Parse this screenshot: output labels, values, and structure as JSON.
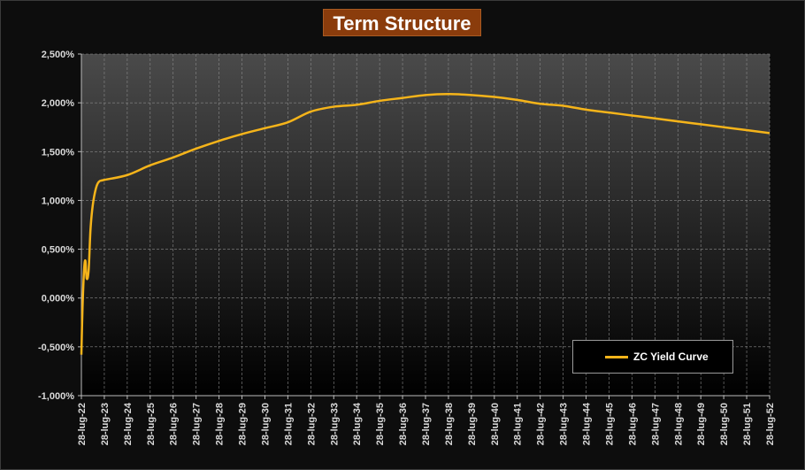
{
  "chart_data": {
    "type": "line",
    "title": "Term Structure",
    "colors": {
      "line": "#f5b41a",
      "title_bg": "#8a3c0c",
      "plot_bg_top": "#4a4a4a",
      "plot_bg_bottom": "#000000",
      "grid": "#8a8a8a",
      "text": "#d9d9d9"
    },
    "ylim": [
      -1.0,
      2.5
    ],
    "yticks": [
      -1.0,
      -0.5,
      0.0,
      0.5,
      1.0,
      1.5,
      2.0,
      2.5
    ],
    "ytick_labels": [
      "-1,000%",
      "-0,500%",
      "0,000%",
      "0,500%",
      "1,000%",
      "1,500%",
      "2,000%",
      "2,500%"
    ],
    "xticks": [
      "28-lug-22",
      "28-lug-23",
      "28-lug-24",
      "28-lug-25",
      "28-lug-26",
      "28-lug-27",
      "28-lug-28",
      "28-lug-29",
      "28-lug-30",
      "28-lug-31",
      "28-lug-32",
      "28-lug-33",
      "28-lug-34",
      "28-lug-35",
      "28-lug-36",
      "28-lug-37",
      "28-lug-38",
      "28-lug-39",
      "28-lug-40",
      "28-lug-41",
      "28-lug-42",
      "28-lug-43",
      "28-lug-44",
      "28-lug-45",
      "28-lug-46",
      "28-lug-47",
      "28-lug-48",
      "28-lug-49",
      "28-lug-50",
      "28-lug-51",
      "28-lug-52"
    ],
    "grid": true,
    "legend_position": "bottom-right",
    "series": [
      {
        "name": "ZC Yield Curve",
        "x": [
          "2022-07-28",
          "2022-08-15",
          "2022-09-10",
          "2022-10-01",
          "2022-10-20",
          "2022-11-20",
          "2022-12-20",
          "2023-01-25",
          "2023-03-15",
          "2023-05-01",
          "2023-07-28",
          "2024-07-28",
          "2025-07-28",
          "2026-07-28",
          "2027-07-28",
          "2028-07-28",
          "2029-07-28",
          "2030-07-28",
          "2031-07-28",
          "2032-07-28",
          "2033-07-28",
          "2034-07-28",
          "2035-07-28",
          "2036-07-28",
          "2037-07-28",
          "2038-07-28",
          "2039-07-28",
          "2040-07-28",
          "2041-07-28",
          "2042-07-28",
          "2043-07-28",
          "2044-07-28",
          "2045-07-28",
          "2046-07-28",
          "2047-07-28",
          "2048-07-28",
          "2049-07-28",
          "2050-07-28",
          "2051-07-28",
          "2052-07-28"
        ],
        "y": [
          -0.58,
          -0.1,
          0.3,
          0.38,
          0.2,
          0.28,
          0.7,
          0.95,
          1.12,
          1.19,
          1.21,
          1.26,
          1.36,
          1.44,
          1.53,
          1.61,
          1.68,
          1.74,
          1.8,
          1.91,
          1.96,
          1.98,
          2.02,
          2.05,
          2.08,
          2.09,
          2.08,
          2.06,
          2.03,
          1.99,
          1.97,
          1.93,
          1.9,
          1.87,
          1.84,
          1.81,
          1.78,
          1.75,
          1.72,
          1.69
        ]
      }
    ]
  }
}
